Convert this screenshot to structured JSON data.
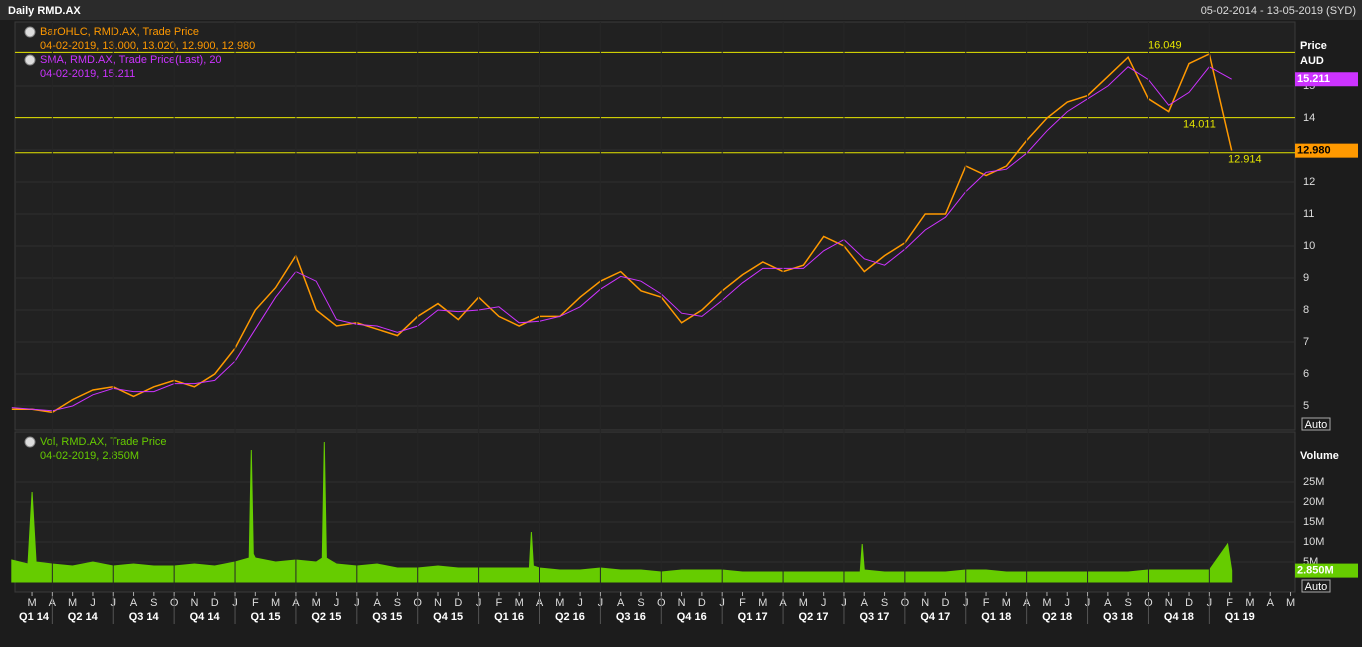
{
  "header": {
    "title": "Daily RMD.AX",
    "range": "05-02-2014 - 13-05-2019 (SYD)"
  },
  "chart_data": [
    {
      "type": "line",
      "y_axis_title": "Price",
      "y_axis_unit": "AUD",
      "scale_button": "Auto",
      "xlim": [
        0.16,
        63.22
      ],
      "ylim": [
        4.25,
        17
      ],
      "yticks": [
        5,
        6,
        7,
        8,
        9,
        10,
        11,
        12,
        13,
        14,
        15
      ],
      "hlines": [
        16.049,
        14.011,
        12.914
      ],
      "hline_color": "#e6e600",
      "series": [
        {
          "name": "BarOHLC, RMD.AX, Trade Price",
          "detail": "04-02-2019, 13.000, 13.020, 12.900, 12.980",
          "color": "#ff9900",
          "last_label": "12.980",
          "x": [
            0,
            1,
            2,
            3,
            4,
            5,
            6,
            7,
            8,
            9,
            10,
            11,
            12,
            13,
            14,
            15,
            16,
            17,
            18,
            19,
            20,
            21,
            22,
            23,
            24,
            25,
            26,
            27,
            28,
            29,
            30,
            31,
            32,
            33,
            34,
            35,
            36,
            37,
            38,
            39,
            40,
            41,
            42,
            43,
            44,
            45,
            46,
            47,
            48,
            49,
            50,
            51,
            52,
            53,
            54,
            55,
            56,
            57,
            58,
            59,
            60.1
          ],
          "values": [
            4.9,
            4.9,
            4.8,
            5.2,
            5.5,
            5.6,
            5.3,
            5.6,
            5.8,
            5.6,
            6.0,
            6.8,
            8.0,
            8.7,
            9.7,
            8.0,
            7.5,
            7.6,
            7.4,
            7.2,
            7.8,
            8.2,
            7.7,
            8.4,
            7.8,
            7.5,
            7.8,
            7.8,
            8.4,
            8.9,
            9.2,
            8.6,
            8.4,
            7.6,
            8.0,
            8.6,
            9.1,
            9.5,
            9.2,
            9.4,
            10.3,
            10.0,
            9.2,
            9.7,
            10.1,
            11.0,
            11.0,
            12.5,
            12.2,
            12.5,
            13.3,
            14.0,
            14.5,
            14.7,
            15.3,
            15.9,
            14.6,
            14.2,
            15.7,
            16.0,
            12.98
          ]
        },
        {
          "name": "SMA, RMD.AX, Trade Price(Last), 20",
          "detail": "04-02-2019, 15.211",
          "color": "#cc33ff",
          "x": [
            0,
            1,
            2,
            3,
            4,
            5,
            6,
            7,
            8,
            9,
            10,
            11,
            12,
            13,
            14,
            15,
            16,
            17,
            18,
            19,
            20,
            21,
            22,
            23,
            24,
            25,
            26,
            27,
            28,
            29,
            30,
            31,
            32,
            33,
            34,
            35,
            36,
            37,
            38,
            39,
            40,
            41,
            42,
            43,
            44,
            45,
            46,
            47,
            48,
            49,
            50,
            51,
            52,
            53,
            54,
            55,
            56,
            57,
            58,
            59,
            60.1
          ],
          "values": [
            4.95,
            4.9,
            4.85,
            5.0,
            5.35,
            5.55,
            5.45,
            5.45,
            5.7,
            5.7,
            5.8,
            6.4,
            7.4,
            8.4,
            9.2,
            8.9,
            7.7,
            7.55,
            7.5,
            7.3,
            7.5,
            8.0,
            7.95,
            8.0,
            8.1,
            7.6,
            7.65,
            7.8,
            8.1,
            8.65,
            9.05,
            8.9,
            8.5,
            7.9,
            7.8,
            8.3,
            8.85,
            9.3,
            9.3,
            9.3,
            9.85,
            10.2,
            9.6,
            9.4,
            9.9,
            10.5,
            10.9,
            11.7,
            12.3,
            12.4,
            12.9,
            13.6,
            14.2,
            14.6,
            15.0,
            15.6,
            15.2,
            14.4,
            14.8,
            15.6,
            15.211
          ]
        }
      ]
    },
    {
      "type": "area",
      "y_axis_title": "Volume",
      "scale_button": "Auto",
      "xlim": [
        0.16,
        63.22
      ],
      "ylim": [
        0,
        37.5
      ],
      "yticks": [
        {
          "value": 5,
          "label": "5M"
        },
        {
          "value": 10,
          "label": "10M"
        },
        {
          "value": 15,
          "label": "15M"
        },
        {
          "value": 20,
          "label": "20M"
        },
        {
          "value": 25,
          "label": "25M"
        }
      ],
      "series": [
        {
          "name": "Vol, RMD.AX, Trade Price",
          "detail": "04-02-2019, 2.850M",
          "color": "#66cc00",
          "last_label": "2.850M",
          "x": [
            0,
            0.8,
            1.0,
            1.2,
            2,
            3,
            4,
            5,
            6,
            7,
            8,
            9,
            10,
            11,
            11.7,
            11.8,
            11.9,
            12,
            13,
            14,
            15,
            15.3,
            15.4,
            15.5,
            16,
            17,
            18,
            19,
            20,
            21,
            22,
            23,
            24,
            25,
            25.5,
            25.6,
            25.7,
            26,
            27,
            28,
            29,
            30,
            31,
            32,
            33,
            34,
            35,
            36,
            37,
            38,
            39,
            40,
            41,
            41.8,
            41.9,
            42,
            43,
            44,
            45,
            46,
            47,
            48,
            49,
            50,
            51,
            52,
            53,
            54,
            55,
            56,
            57,
            58,
            59,
            59.9,
            60.1
          ],
          "values": [
            5.5,
            4.5,
            22.5,
            5,
            4.5,
            4,
            5,
            4,
            4.5,
            4,
            4,
            4.5,
            4,
            5,
            6,
            33,
            7,
            6,
            5,
            5.5,
            5,
            6,
            35,
            6,
            4.5,
            4,
            4.5,
            3.5,
            3.5,
            4,
            3.5,
            3.5,
            3.5,
            3.5,
            3.5,
            12.5,
            4,
            3.5,
            3,
            3,
            3.5,
            3,
            3,
            2.5,
            3,
            3,
            3,
            2.5,
            2.5,
            2.5,
            2.5,
            2.5,
            2.5,
            2.5,
            9.5,
            3,
            2.5,
            2.5,
            2.5,
            2.5,
            3,
            3,
            2.5,
            2.5,
            2.5,
            2.5,
            2.5,
            2.5,
            2.5,
            3,
            3,
            3,
            3,
            9.5,
            2.85
          ]
        }
      ],
      "xticks": [
        {
          "value": 1,
          "label": "M"
        },
        {
          "value": 2,
          "label": "A"
        },
        {
          "value": 3,
          "label": "M"
        },
        {
          "value": 4,
          "label": "J"
        },
        {
          "value": 5,
          "label": "J"
        },
        {
          "value": 6,
          "label": "A"
        },
        {
          "value": 7,
          "label": "S"
        },
        {
          "value": 8,
          "label": "O"
        },
        {
          "value": 9,
          "label": "N"
        },
        {
          "value": 10,
          "label": "D"
        },
        {
          "value": 11,
          "label": "J"
        },
        {
          "value": 12,
          "label": "F"
        },
        {
          "value": 13,
          "label": "M"
        },
        {
          "value": 14,
          "label": "A"
        },
        {
          "value": 15,
          "label": "M"
        },
        {
          "value": 16,
          "label": "J"
        },
        {
          "value": 17,
          "label": "J"
        },
        {
          "value": 18,
          "label": "A"
        },
        {
          "value": 19,
          "label": "S"
        },
        {
          "value": 20,
          "label": "O"
        },
        {
          "value": 21,
          "label": "N"
        },
        {
          "value": 22,
          "label": "D"
        },
        {
          "value": 23,
          "label": "J"
        },
        {
          "value": 24,
          "label": "F"
        },
        {
          "value": 25,
          "label": "M"
        },
        {
          "value": 26,
          "label": "A"
        },
        {
          "value": 27,
          "label": "M"
        },
        {
          "value": 28,
          "label": "J"
        },
        {
          "value": 29,
          "label": "J"
        },
        {
          "value": 30,
          "label": "A"
        },
        {
          "value": 31,
          "label": "S"
        },
        {
          "value": 32,
          "label": "O"
        },
        {
          "value": 33,
          "label": "N"
        },
        {
          "value": 34,
          "label": "D"
        },
        {
          "value": 35,
          "label": "J"
        },
        {
          "value": 36,
          "label": "F"
        },
        {
          "value": 37,
          "label": "M"
        },
        {
          "value": 38,
          "label": "A"
        },
        {
          "value": 39,
          "label": "M"
        },
        {
          "value": 40,
          "label": "J"
        },
        {
          "value": 41,
          "label": "J"
        },
        {
          "value": 42,
          "label": "A"
        },
        {
          "value": 43,
          "label": "S"
        },
        {
          "value": 44,
          "label": "O"
        },
        {
          "value": 45,
          "label": "N"
        },
        {
          "value": 46,
          "label": "D"
        },
        {
          "value": 47,
          "label": "J"
        },
        {
          "value": 48,
          "label": "F"
        },
        {
          "value": 49,
          "label": "M"
        },
        {
          "value": 50,
          "label": "A"
        },
        {
          "value": 51,
          "label": "M"
        },
        {
          "value": 52,
          "label": "J"
        },
        {
          "value": 53,
          "label": "J"
        },
        {
          "value": 54,
          "label": "A"
        },
        {
          "value": 55,
          "label": "S"
        },
        {
          "value": 56,
          "label": "O"
        },
        {
          "value": 57,
          "label": "N"
        },
        {
          "value": 58,
          "label": "D"
        },
        {
          "value": 59,
          "label": "J"
        },
        {
          "value": 60,
          "label": "F"
        },
        {
          "value": 61,
          "label": "M"
        },
        {
          "value": 62,
          "label": "A"
        },
        {
          "value": 63,
          "label": "M"
        }
      ],
      "quarters": [
        {
          "value": -1,
          "label": "Q1 14"
        },
        {
          "value": 2,
          "label": "Q2 14"
        },
        {
          "value": 5,
          "label": "Q3 14"
        },
        {
          "value": 8,
          "label": "Q4 14"
        },
        {
          "value": 11,
          "label": "Q1 15"
        },
        {
          "value": 14,
          "label": "Q2 15"
        },
        {
          "value": 17,
          "label": "Q3 15"
        },
        {
          "value": 20,
          "label": "Q4 15"
        },
        {
          "value": 23,
          "label": "Q1 16"
        },
        {
          "value": 26,
          "label": "Q2 16"
        },
        {
          "value": 29,
          "label": "Q3 16"
        },
        {
          "value": 32,
          "label": "Q4 16"
        },
        {
          "value": 35,
          "label": "Q1 17"
        },
        {
          "value": 38,
          "label": "Q2 17"
        },
        {
          "value": 41,
          "label": "Q3 17"
        },
        {
          "value": 44,
          "label": "Q4 17"
        },
        {
          "value": 47,
          "label": "Q1 18"
        },
        {
          "value": 50,
          "label": "Q2 18"
        },
        {
          "value": 53,
          "label": "Q3 18"
        },
        {
          "value": 56,
          "label": "Q4 18"
        },
        {
          "value": 59,
          "label": "Q1 19"
        }
      ]
    }
  ]
}
